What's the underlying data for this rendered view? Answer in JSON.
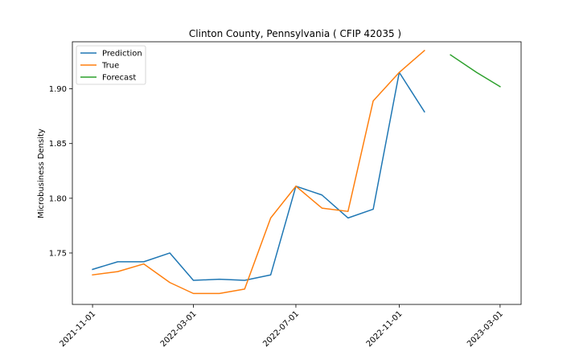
{
  "chart_data": {
    "type": "line",
    "title": "Clinton County, Pennsylvania ( CFIP 42035 )",
    "xlabel": "",
    "ylabel": "Microbusiness Density",
    "xlim": [
      "2021-10-08",
      "2023-03-26"
    ],
    "ylim": [
      1.703,
      1.943
    ],
    "x_ticks": [
      "2021-11-01",
      "2022-03-01",
      "2022-07-01",
      "2022-11-01",
      "2023-03-01"
    ],
    "y_ticks": [
      1.75,
      1.8,
      1.85,
      1.9
    ],
    "y_tick_labels": [
      "1.75",
      "1.80",
      "1.85",
      "1.90"
    ],
    "legend_position": "upper-left",
    "series": [
      {
        "name": "Prediction",
        "color": "#1f77b4",
        "x": [
          "2021-11-01",
          "2021-12-01",
          "2022-01-01",
          "2022-02-01",
          "2022-03-01",
          "2022-04-01",
          "2022-05-01",
          "2022-06-01",
          "2022-07-01",
          "2022-08-01",
          "2022-09-01",
          "2022-10-01",
          "2022-11-01",
          "2022-12-01"
        ],
        "values": [
          1.735,
          1.742,
          1.742,
          1.75,
          1.725,
          1.726,
          1.725,
          1.73,
          1.811,
          1.803,
          1.782,
          1.79,
          1.915,
          1.879
        ]
      },
      {
        "name": "True",
        "color": "#ff7f0e",
        "x": [
          "2021-11-01",
          "2021-12-01",
          "2022-01-01",
          "2022-02-01",
          "2022-03-01",
          "2022-04-01",
          "2022-05-01",
          "2022-06-01",
          "2022-07-01",
          "2022-08-01",
          "2022-09-01",
          "2022-10-01",
          "2022-11-01",
          "2022-12-01"
        ],
        "values": [
          1.73,
          1.733,
          1.74,
          1.723,
          1.713,
          1.713,
          1.717,
          1.782,
          1.811,
          1.791,
          1.788,
          1.889,
          1.915,
          1.935
        ]
      },
      {
        "name": "Forecast",
        "color": "#2ca02c",
        "x": [
          "2023-01-01",
          "2023-02-01",
          "2023-03-01"
        ],
        "values": [
          1.931,
          1.915,
          1.902
        ]
      }
    ]
  }
}
